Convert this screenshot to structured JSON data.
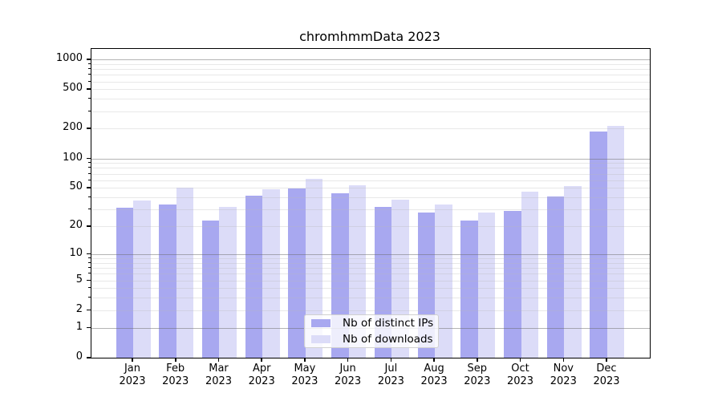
{
  "chart_data": {
    "type": "bar",
    "title": "chromhmmData 2023",
    "scale": "log1p",
    "ylim": [
      0,
      1273
    ],
    "grid": "horizontal",
    "legend_position": "lower center",
    "year": "2023",
    "categories": [
      "Jan",
      "Feb",
      "Mar",
      "Apr",
      "May",
      "Jun",
      "Jul",
      "Aug",
      "Sep",
      "Oct",
      "Nov",
      "Dec"
    ],
    "series": [
      {
        "name": "Nb of distinct IPs",
        "color": "#a8a8f0",
        "values": [
          31,
          34,
          23,
          42,
          49,
          44,
          32,
          28,
          23,
          29,
          41,
          188
        ]
      },
      {
        "name": "Nb of downloads",
        "color": "#dcdcf8",
        "values": [
          37,
          50,
          32,
          48,
          62,
          53,
          38,
          34,
          28,
          46,
          52,
          214
        ]
      }
    ],
    "yticks_labeled": [
      0,
      1,
      2,
      5,
      10,
      20,
      50,
      100,
      200,
      500,
      1000
    ],
    "grid_major": [
      1,
      10,
      100,
      1000
    ],
    "grid_minor": [
      2,
      3,
      4,
      5,
      6,
      7,
      8,
      9,
      20,
      30,
      40,
      50,
      60,
      70,
      80,
      90,
      200,
      300,
      400,
      500,
      600,
      700,
      800,
      900
    ]
  }
}
